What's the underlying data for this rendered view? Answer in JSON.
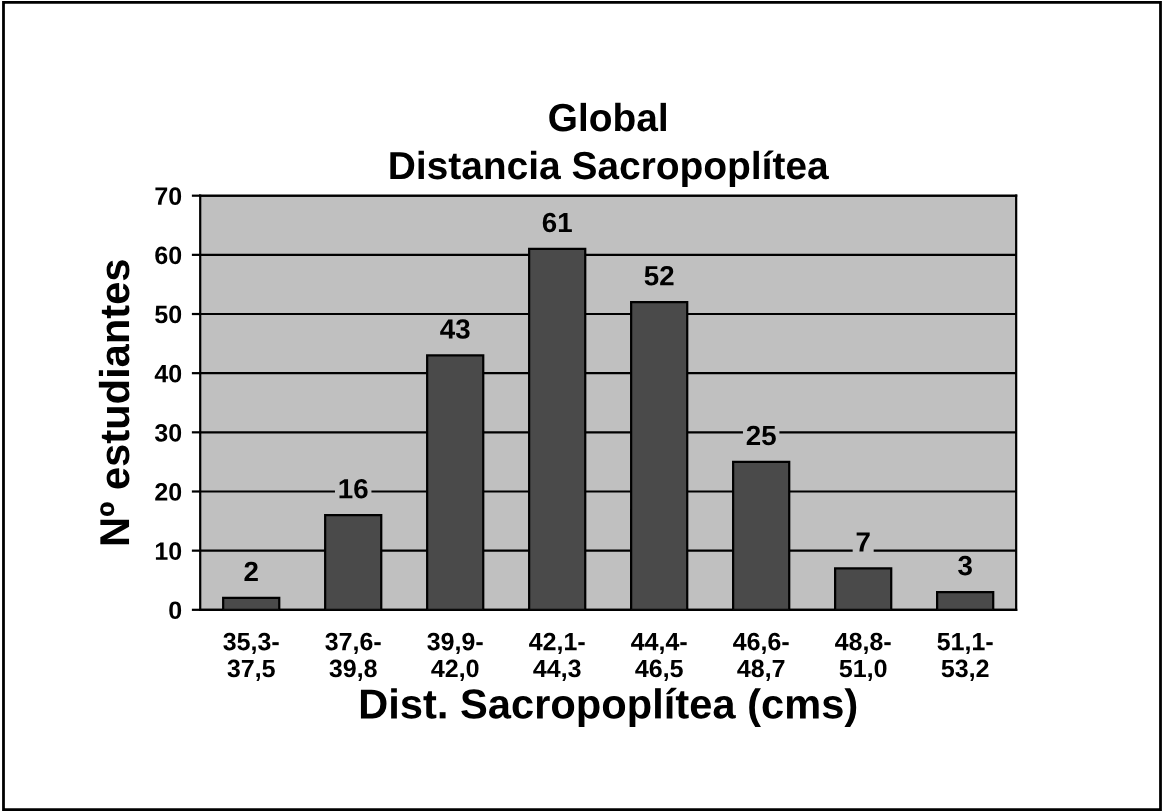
{
  "chart_data": {
    "type": "bar",
    "title": "Global\nDistancia Sacropoplítea",
    "xlabel": "Dist. Sacropoplítea (cms)",
    "ylabel": "Nº estudiantes",
    "categories": [
      "35,3-\n37,5",
      "37,6-\n39,8",
      "39,9-\n42,0",
      "42,1-\n44,3",
      "44,4-\n46,5",
      "46,6-\n48,7",
      "48,8-\n51,0",
      "51,1-\n53,2"
    ],
    "values": [
      2,
      16,
      43,
      61,
      52,
      25,
      7,
      3
    ],
    "color": "#4a4a4a",
    "ylim": [
      0,
      70
    ],
    "yticks": [
      0,
      10,
      20,
      30,
      40,
      50,
      60,
      70
    ],
    "grid": "y",
    "data_labels": true
  }
}
